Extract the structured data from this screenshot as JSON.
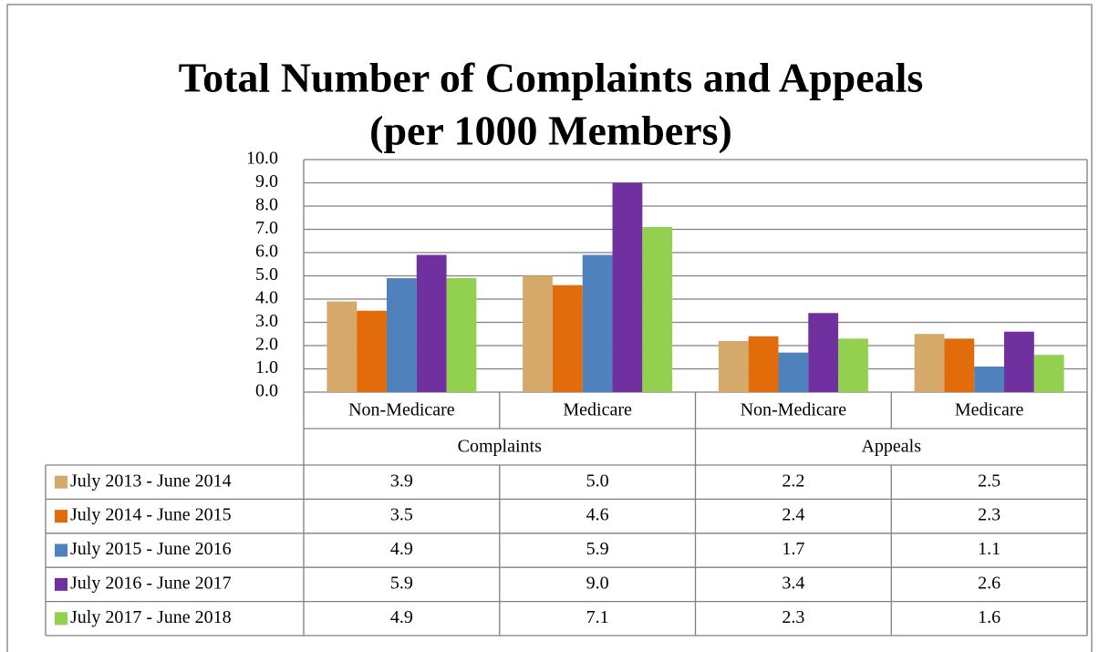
{
  "chart_data": {
    "type": "bar",
    "title": "Total Number of Complaints and Appeals",
    "subtitle": "(per 1000 Members)",
    "categories": [
      "Non-Medicare",
      "Medicare",
      "Non-Medicare",
      "Medicare"
    ],
    "group_labels": [
      "Complaints",
      "Appeals"
    ],
    "series": [
      {
        "name": "July 2013 - June 2014",
        "color": "#d4a96a",
        "values": [
          3.9,
          5.0,
          2.2,
          2.5
        ],
        "value_labels": [
          "3.9",
          "5.0",
          "2.2",
          "2.5"
        ]
      },
      {
        "name": "July 2014 - June 2015",
        "color": "#e36c0a",
        "values": [
          3.5,
          4.6,
          2.4,
          2.3
        ],
        "value_labels": [
          "3.5",
          "4.6",
          "2.4",
          "2.3"
        ]
      },
      {
        "name": "July 2015 - June 2016",
        "color": "#4f81bd",
        "values": [
          4.9,
          5.9,
          1.7,
          1.1
        ],
        "value_labels": [
          "4.9",
          "5.9",
          "1.7",
          "1.1"
        ]
      },
      {
        "name": "July 2016 - June 2017",
        "color": "#7030a0",
        "values": [
          5.9,
          9.0,
          3.4,
          2.6
        ],
        "value_labels": [
          "5.9",
          "9.0",
          "3.4",
          "2.6"
        ]
      },
      {
        "name": "July 2017 - June 2018",
        "color": "#92d050",
        "values": [
          4.9,
          7.1,
          2.3,
          1.6
        ],
        "value_labels": [
          "4.9",
          "7.1",
          "2.3",
          "1.6"
        ]
      }
    ],
    "ylim": [
      0,
      10
    ],
    "yticks": [
      {
        "value": 0,
        "label": "0.0"
      },
      {
        "value": 1,
        "label": "1.0"
      },
      {
        "value": 2,
        "label": "2.0"
      },
      {
        "value": 3,
        "label": "3.0"
      },
      {
        "value": 4,
        "label": "4.0"
      },
      {
        "value": 5,
        "label": "5.0"
      },
      {
        "value": 6,
        "label": "6.0"
      },
      {
        "value": 7,
        "label": "7.0"
      },
      {
        "value": 8,
        "label": "8.0"
      },
      {
        "value": 9,
        "label": "9.0"
      },
      {
        "value": 10,
        "label": "10.0"
      }
    ],
    "grid": true
  }
}
